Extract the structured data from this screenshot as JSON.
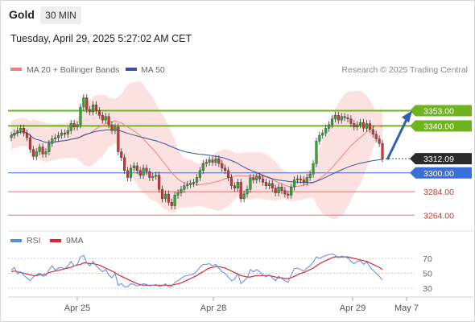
{
  "header": {
    "instrument": "Gold",
    "timeframe": "30 MIN",
    "datetime": "Tuesday, April 29, 2025 5:27:02 AM CET"
  },
  "legend": {
    "bb_label": "MA 20 + Bollinger Bands",
    "ma50_label": "MA 50",
    "credit": "Research © 2025 Trading Central",
    "rsi_label": "RSI",
    "ma9_label": "9MA"
  },
  "colors": {
    "bb_fill": "#fcdcdc",
    "ma20": "#f08080",
    "ma50": "#34559b",
    "up": "#27ae2e",
    "down": "#d23434",
    "resistance": "#6fb31f",
    "pivot": "#3a6fd8",
    "support": "#e57373",
    "rsi": "#5b8ae6",
    "ma9": "#d62b2b",
    "arrow": "#2e62b0"
  },
  "chart_data": [
    {
      "type": "candlestick",
      "title": "Gold",
      "timeframe": "30 MIN",
      "x_ticks": [
        "Apr 25",
        "Apr 28",
        "Apr 29",
        "May 7"
      ],
      "ylim": [
        3258,
        3378
      ],
      "current_price": 3312.09,
      "levels": [
        {
          "value": 3353.0,
          "label": "3353.00",
          "kind": "resistance"
        },
        {
          "value": 3340.0,
          "label": "3340.00",
          "kind": "resistance"
        },
        {
          "value": 3300.0,
          "label": "3300.00",
          "kind": "pivot"
        },
        {
          "value": 3284.0,
          "label": "3284.00",
          "kind": "support"
        },
        {
          "value": 3264.0,
          "label": "3264.00",
          "kind": "support"
        }
      ],
      "forecast": {
        "from": 3312,
        "to": 3353,
        "direction": "up"
      },
      "closes": [
        3332,
        3334,
        3336,
        3338,
        3334,
        3330,
        3320,
        3314,
        3318,
        3322,
        3316,
        3318,
        3325,
        3329,
        3330,
        3332,
        3334,
        3333,
        3336,
        3342,
        3339,
        3341,
        3356,
        3364,
        3354,
        3352,
        3358,
        3353,
        3349,
        3345,
        3348,
        3341,
        3336,
        3339,
        3318,
        3313,
        3302,
        3296,
        3304,
        3306,
        3302,
        3298,
        3304,
        3301,
        3296,
        3297,
        3298,
        3286,
        3278,
        3282,
        3275,
        3272,
        3281,
        3283,
        3286,
        3289,
        3290,
        3291,
        3292,
        3296,
        3302,
        3308,
        3309,
        3311,
        3309,
        3312,
        3308,
        3304,
        3302,
        3296,
        3289,
        3287,
        3292,
        3278,
        3282,
        3286,
        3296,
        3294,
        3297,
        3295,
        3292,
        3289,
        3291,
        3287,
        3283,
        3288,
        3285,
        3282,
        3281,
        3288,
        3294,
        3295,
        3294,
        3292,
        3296,
        3299,
        3308,
        3327,
        3332,
        3334,
        3338,
        3341,
        3346,
        3349,
        3345,
        3348,
        3347,
        3346,
        3342,
        3339,
        3341,
        3343,
        3338,
        3342,
        3337,
        3333,
        3329,
        3325,
        3312
      ]
    },
    {
      "type": "line",
      "title": "RSI",
      "yticks": [
        30,
        50,
        70
      ],
      "series": [
        {
          "name": "RSI",
          "values": [
            54,
            58,
            49,
            52,
            47,
            44,
            40,
            45,
            48,
            50,
            46,
            47,
            55,
            60,
            54,
            57,
            58,
            56,
            60,
            66,
            60,
            62,
            72,
            74,
            64,
            60,
            66,
            60,
            56,
            52,
            55,
            48,
            44,
            50,
            34,
            36,
            32,
            32,
            36,
            35,
            33,
            34,
            36,
            35,
            33,
            34,
            35,
            32,
            33,
            36,
            32,
            32,
            38,
            40,
            43,
            46,
            47,
            48,
            49,
            53,
            58,
            62,
            62,
            63,
            60,
            62,
            57,
            52,
            50,
            45,
            40,
            42,
            50,
            36,
            40,
            44,
            55,
            52,
            55,
            52,
            48,
            45,
            48,
            44,
            40,
            46,
            43,
            40,
            38,
            48,
            56,
            57,
            55,
            53,
            57,
            60,
            65,
            72,
            70,
            72,
            74,
            75,
            76,
            74,
            71,
            73,
            72,
            71,
            66,
            63,
            66,
            67,
            62,
            65,
            59,
            54,
            50,
            46,
            41
          ]
        },
        {
          "name": "9MA",
          "values": [
            52,
            53,
            52,
            51,
            50,
            49,
            48,
            47,
            47,
            48,
            48,
            49,
            51,
            52,
            53,
            54,
            55,
            56,
            57,
            58,
            60,
            61,
            62,
            64,
            64,
            63,
            63,
            62,
            61,
            59,
            57,
            55,
            53,
            51,
            48,
            46,
            44,
            42,
            40,
            38,
            36,
            35,
            34,
            34,
            34,
            34,
            34,
            34,
            34,
            34,
            34,
            34,
            35,
            36,
            37,
            39,
            41,
            43,
            45,
            47,
            50,
            52,
            55,
            57,
            58,
            59,
            59,
            58,
            57,
            55,
            53,
            51,
            49,
            47,
            46,
            45,
            45,
            46,
            47,
            47,
            47,
            47,
            47,
            46,
            45,
            44,
            44,
            43,
            43,
            44,
            46,
            48,
            50,
            51,
            53,
            55,
            57,
            60,
            63,
            65,
            67,
            69,
            71,
            72,
            72,
            72,
            72,
            72,
            71,
            70,
            69,
            68,
            67,
            66,
            64,
            62,
            60,
            58,
            55
          ]
        }
      ]
    }
  ]
}
